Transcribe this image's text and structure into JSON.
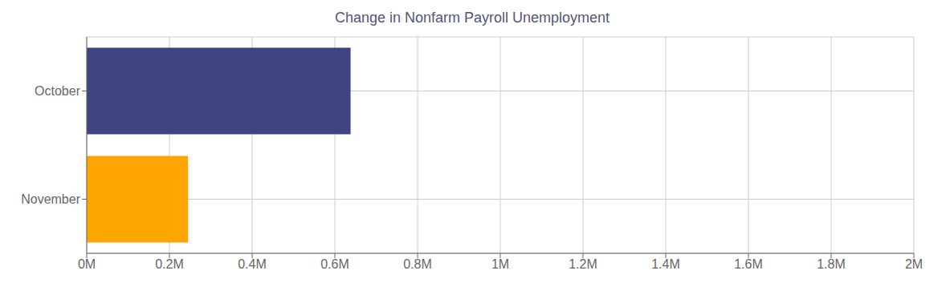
{
  "chart_data": {
    "type": "bar",
    "orientation": "horizontal",
    "title": "Change in Nonfarm Payroll Unemployment",
    "categories": [
      "October",
      "November"
    ],
    "values": [
      638000,
      245000
    ],
    "colors": [
      "#3d4480",
      "#ffa500"
    ],
    "xlim": [
      0,
      2000000
    ],
    "xticks": [
      {
        "value": 0,
        "label": "0M"
      },
      {
        "value": 200000,
        "label": "0.2M"
      },
      {
        "value": 400000,
        "label": "0.4M"
      },
      {
        "value": 600000,
        "label": "0.6M"
      },
      {
        "value": 800000,
        "label": "0.8M"
      },
      {
        "value": 1000000,
        "label": "1M"
      },
      {
        "value": 1200000,
        "label": "1.2M"
      },
      {
        "value": 1400000,
        "label": "1.4M"
      },
      {
        "value": 1600000,
        "label": "1.6M"
      },
      {
        "value": 1800000,
        "label": "1.8M"
      },
      {
        "value": 2000000,
        "label": "2M"
      }
    ],
    "grid": true
  }
}
